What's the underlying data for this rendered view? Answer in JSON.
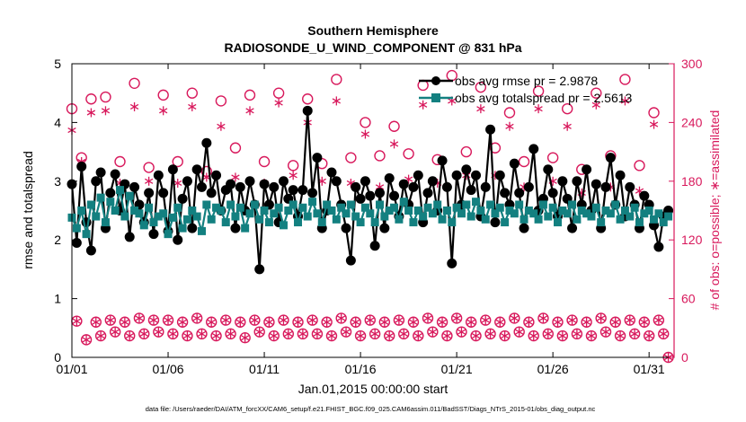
{
  "chart_data": {
    "type": "line",
    "title": "Southern Hemisphere",
    "subtitle": "RADIOSONDE_U_WIND_COMPONENT @ 831 hPa",
    "xlabel": "Jan.01,2015 00:00:00 start",
    "ylabel": "rmse and totalspread",
    "y2label": "# of obs: o=possible; ∗=assimilated",
    "xlim": [
      1,
      32.3
    ],
    "ylim": [
      0,
      5
    ],
    "y2lim": [
      0,
      300
    ],
    "x_ticks": [
      1,
      6,
      11,
      16,
      21,
      26,
      31
    ],
    "x_tick_labels": [
      "01/01",
      "01/06",
      "01/11",
      "01/16",
      "01/21",
      "01/26",
      "01/31"
    ],
    "y_ticks": [
      0,
      1,
      2,
      3,
      4,
      5
    ],
    "y_tick_labels": [
      "0",
      "1",
      "2",
      "3",
      "4",
      "5"
    ],
    "y2_ticks": [
      0,
      60,
      120,
      180,
      240,
      300
    ],
    "y2_tick_labels": [
      "0",
      "60",
      "120",
      "180",
      "240",
      "300"
    ],
    "legend_position": "top-right",
    "footnote": "data file: /Users/raeder/DAI/ATM_forcXX/CAM6_setup/f.e21.FHIST_BGC.f09_025.CAM6assim.011/BadSST/Diags_NTrS_2015-01/obs_diag_output.nc",
    "x": [
      1.0,
      1.25,
      1.5,
      1.75,
      2.0,
      2.25,
      2.5,
      2.75,
      3.0,
      3.25,
      3.5,
      3.75,
      4.0,
      4.25,
      4.5,
      4.75,
      5.0,
      5.25,
      5.5,
      5.75,
      6.0,
      6.25,
      6.5,
      6.75,
      7.0,
      7.25,
      7.5,
      7.75,
      8.0,
      8.25,
      8.5,
      8.75,
      9.0,
      9.25,
      9.5,
      9.75,
      10.0,
      10.25,
      10.5,
      10.75,
      11.0,
      11.25,
      11.5,
      11.75,
      12.0,
      12.25,
      12.5,
      12.75,
      13.0,
      13.25,
      13.5,
      13.75,
      14.0,
      14.25,
      14.5,
      14.75,
      15.0,
      15.25,
      15.5,
      15.75,
      16.0,
      16.25,
      16.5,
      16.75,
      17.0,
      17.25,
      17.5,
      17.75,
      18.0,
      18.25,
      18.5,
      18.75,
      19.0,
      19.25,
      19.5,
      19.75,
      20.0,
      20.25,
      20.5,
      20.75,
      21.0,
      21.25,
      21.5,
      21.75,
      22.0,
      22.25,
      22.5,
      22.75,
      23.0,
      23.25,
      23.5,
      23.75,
      24.0,
      24.25,
      24.5,
      24.75,
      25.0,
      25.25,
      25.5,
      25.75,
      26.0,
      26.25,
      26.5,
      26.75,
      27.0,
      27.25,
      27.5,
      27.75,
      28.0,
      28.25,
      28.5,
      28.75,
      29.0,
      29.25,
      29.5,
      29.75,
      30.0,
      30.25,
      30.5,
      30.75,
      31.0,
      31.25,
      31.5,
      31.75,
      32.0
    ],
    "series": [
      {
        "name": "obs avg rmse pr = 2.9878",
        "axis": "left",
        "color": "#000000",
        "marker": "circle",
        "values": [
          2.95,
          1.95,
          3.25,
          2.3,
          1.82,
          3.0,
          3.15,
          2.2,
          2.8,
          3.12,
          2.5,
          2.95,
          2.05,
          2.9,
          2.6,
          2.3,
          2.8,
          2.1,
          3.1,
          2.8,
          2.15,
          3.2,
          2.0,
          2.7,
          3.0,
          2.2,
          3.2,
          2.9,
          3.65,
          2.8,
          3.1,
          2.5,
          2.85,
          2.95,
          2.2,
          2.9,
          2.5,
          3.0,
          2.6,
          1.5,
          2.95,
          2.6,
          2.9,
          2.3,
          3.0,
          2.7,
          2.85,
          2.4,
          2.85,
          4.2,
          2.8,
          3.4,
          2.2,
          2.5,
          3.15,
          3.0,
          2.6,
          2.2,
          1.65,
          2.9,
          2.7,
          3.0,
          2.75,
          1.9,
          2.8,
          2.2,
          3.05,
          2.75,
          2.4,
          2.95,
          2.6,
          2.9,
          3.1,
          2.3,
          2.8,
          3.0,
          2.5,
          3.35,
          2.9,
          1.6,
          3.1,
          2.6,
          3.2,
          2.85,
          3.1,
          2.4,
          2.9,
          3.88,
          2.3,
          3.1,
          2.8,
          2.6,
          3.3,
          2.8,
          2.2,
          2.9,
          3.55,
          2.5,
          2.7,
          3.2,
          2.8,
          2.4,
          3.0,
          2.7,
          2.2,
          3.0,
          2.6,
          3.2,
          2.5,
          2.95,
          2.2,
          2.9,
          3.4,
          2.6,
          3.1,
          2.4,
          2.9,
          2.6,
          2.2,
          2.75,
          2.6,
          2.25,
          1.88,
          2.4,
          2.5
        ],
        "labeled_point_index": 18
      },
      {
        "name": "obs avg totalspread pr = 2.5613",
        "axis": "left",
        "color": "#138080",
        "marker": "square",
        "values": [
          2.38,
          2.2,
          2.5,
          2.1,
          2.6,
          2.4,
          2.72,
          2.3,
          2.65,
          2.5,
          2.85,
          2.4,
          2.75,
          2.5,
          2.45,
          2.25,
          2.55,
          2.3,
          2.4,
          2.45,
          2.1,
          2.38,
          2.55,
          2.2,
          2.35,
          2.5,
          2.4,
          2.15,
          2.6,
          2.35,
          2.55,
          2.5,
          2.3,
          2.6,
          2.4,
          2.55,
          2.2,
          2.45,
          2.6,
          2.35,
          2.5,
          2.3,
          2.45,
          2.55,
          2.25,
          2.5,
          2.6,
          2.3,
          2.55,
          2.4,
          2.65,
          2.45,
          2.3,
          2.6,
          2.5,
          2.35,
          2.55,
          2.45,
          2.6,
          2.4,
          2.3,
          2.55,
          2.45,
          2.3,
          2.6,
          2.4,
          2.5,
          2.55,
          2.35,
          2.65,
          2.5,
          2.3,
          2.5,
          2.4,
          2.55,
          2.45,
          2.6,
          2.35,
          2.5,
          2.3,
          2.55,
          2.45,
          2.6,
          2.4,
          2.65,
          2.5,
          2.35,
          2.6,
          2.45,
          2.55,
          2.3,
          2.5,
          2.45,
          2.6,
          2.35,
          2.5,
          2.45,
          2.35,
          2.6,
          2.4,
          2.55,
          2.3,
          2.5,
          2.45,
          2.6,
          2.35,
          2.5,
          2.45,
          2.4,
          2.55,
          2.3,
          2.5,
          2.45,
          2.6,
          2.35,
          2.5,
          2.4,
          2.55,
          2.3,
          2.45,
          2.5,
          2.35,
          2.45,
          2.3,
          2.4
        ]
      },
      {
        "name": "possible",
        "axis": "right",
        "color": "#d8195c",
        "marker": "open-circle",
        "values": [
          254,
          37,
          204,
          18,
          264,
          36,
          22,
          266,
          38,
          26,
          200,
          36,
          22,
          280,
          40,
          24,
          194,
          38,
          26,
          268,
          38,
          24,
          200,
          36,
          22,
          270,
          40,
          24,
          190,
          36,
          22,
          262,
          38,
          24,
          214,
          36,
          20,
          268,
          38,
          26,
          200,
          36,
          22,
          270,
          38,
          24,
          196,
          36,
          24,
          264,
          38,
          24,
          198,
          36,
          22,
          284,
          40,
          26,
          204,
          36,
          22,
          240,
          38,
          24,
          206,
          36,
          22,
          236,
          38,
          24,
          208,
          36,
          22,
          278,
          40,
          26,
          202,
          36,
          22,
          288,
          40,
          26,
          210,
          36,
          22,
          276,
          38,
          24,
          214,
          36,
          22,
          250,
          40,
          26,
          200,
          36,
          22,
          272,
          40,
          24,
          204,
          36,
          22,
          254,
          38,
          24,
          192,
          36,
          22,
          270,
          40,
          26,
          206,
          36,
          22,
          284,
          38,
          24,
          196,
          36,
          22,
          250,
          38,
          24,
          0
        ]
      },
      {
        "name": "assimilated",
        "axis": "right",
        "color": "#d8195c",
        "marker": "asterisk",
        "values": [
          232,
          37,
          200,
          18,
          250,
          36,
          22,
          252,
          38,
          26,
          178,
          36,
          22,
          256,
          40,
          24,
          180,
          38,
          26,
          252,
          38,
          24,
          178,
          36,
          22,
          256,
          40,
          24,
          184,
          36,
          22,
          236,
          38,
          24,
          184,
          36,
          20,
          252,
          38,
          26,
          178,
          36,
          22,
          260,
          38,
          24,
          186,
          36,
          24,
          240,
          38,
          24,
          180,
          36,
          22,
          262,
          40,
          26,
          178,
          36,
          22,
          228,
          38,
          24,
          174,
          36,
          22,
          218,
          38,
          24,
          182,
          36,
          22,
          258,
          40,
          26,
          178,
          36,
          22,
          262,
          40,
          26,
          186,
          36,
          22,
          254,
          38,
          24,
          186,
          36,
          22,
          236,
          40,
          26,
          174,
          36,
          22,
          254,
          40,
          24,
          180,
          36,
          22,
          236,
          38,
          24,
          168,
          36,
          22,
          258,
          40,
          26,
          174,
          36,
          22,
          262,
          38,
          24,
          170,
          36,
          22,
          238,
          38,
          24,
          0
        ]
      }
    ]
  }
}
